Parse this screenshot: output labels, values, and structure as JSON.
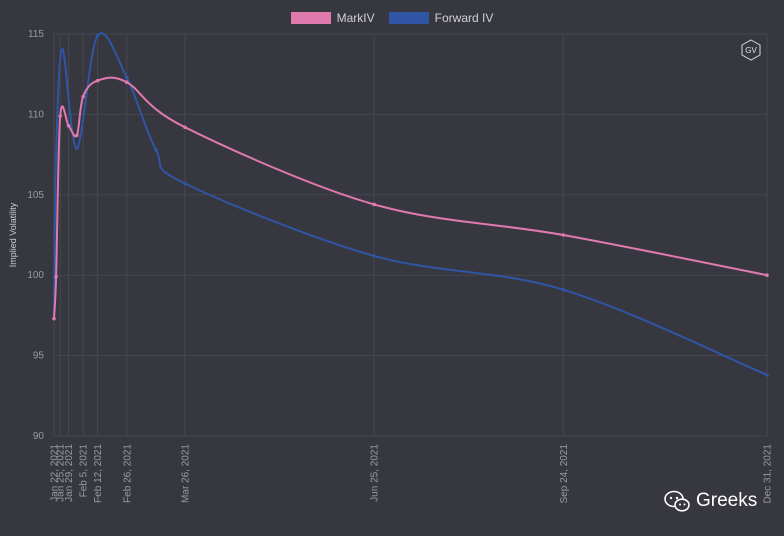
{
  "chart_data": {
    "type": "line",
    "ylabel": "Implied Volatility",
    "xlabel": "",
    "ylim": [
      90,
      115
    ],
    "yticks": [
      90,
      95,
      100,
      105,
      110,
      115
    ],
    "xlim": [
      "2021-01-22",
      "2021-12-31"
    ],
    "x_tick_labels": [
      "Jan 22, 2021",
      "Jan 25, 2021",
      "Jan 29, 2021",
      "Feb 5, 2021",
      "Feb 12, 2021",
      "Feb 26, 2021",
      "Mar 26, 2021",
      "Jun 25, 2021",
      "Sep 24, 2021",
      "Dec 31, 2021"
    ],
    "x_tick_dates": [
      "2021-01-22",
      "2021-01-25",
      "2021-01-29",
      "2021-02-05",
      "2021-02-12",
      "2021-02-26",
      "2021-03-26",
      "2021-06-25",
      "2021-09-24",
      "2021-12-31"
    ],
    "grid": true,
    "legend_position": "top-center",
    "series": [
      {
        "name": "MarkIV",
        "color": "#e07aae",
        "points": [
          [
            "2021-01-22",
            97.3
          ],
          [
            "2021-01-23",
            99.9
          ],
          [
            "2021-01-25",
            109.9
          ],
          [
            "2021-01-29",
            109.3
          ],
          [
            "2021-02-02",
            108.7
          ],
          [
            "2021-02-05",
            111.1
          ],
          [
            "2021-02-12",
            112.1
          ],
          [
            "2021-02-26",
            112.0
          ],
          [
            "2021-03-26",
            109.2
          ],
          [
            "2021-06-25",
            104.4
          ],
          [
            "2021-09-24",
            102.5
          ],
          [
            "2021-12-31",
            100.0
          ]
        ]
      },
      {
        "name": "Forward IV",
        "color": "#2f55a4",
        "points": [
          [
            "2021-01-22",
            97.3
          ],
          [
            "2021-01-23",
            107.5
          ],
          [
            "2021-01-26",
            114.0
          ],
          [
            "2021-02-02",
            107.9
          ],
          [
            "2021-02-12",
            114.9
          ],
          [
            "2021-02-26",
            112.3
          ],
          [
            "2021-03-12",
            107.8
          ],
          [
            "2021-03-26",
            105.7
          ],
          [
            "2021-06-25",
            101.2
          ],
          [
            "2021-09-24",
            99.1
          ],
          [
            "2021-12-31",
            93.8
          ]
        ]
      }
    ]
  },
  "badge": {
    "label": "GV"
  },
  "watermark": {
    "icon": "wechat-icon",
    "text": "Greeks"
  },
  "colors": {
    "background": "#373740",
    "grid": "#474752",
    "axis_text": "#9a9aa4"
  }
}
